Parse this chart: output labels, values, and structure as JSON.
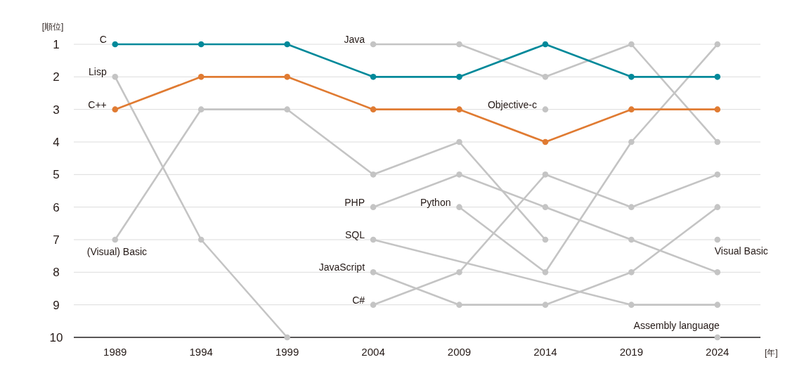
{
  "chart_data": {
    "type": "line",
    "ylabel": "[順位]",
    "xlabel": "[年]",
    "marker": "circle",
    "grid": "y",
    "xlim": [
      1986.6,
      2026.5
    ],
    "ylim": [
      10,
      1
    ],
    "xticks": [
      1989,
      1994,
      1999,
      2004,
      2009,
      2014,
      2019,
      2024
    ],
    "yticks": [
      1,
      2,
      3,
      4,
      5,
      6,
      7,
      8,
      9,
      10
    ],
    "x": [
      1989,
      1994,
      1999,
      2004,
      2009,
      2014,
      2019,
      2024
    ],
    "series": [
      {
        "name": "C",
        "color": "#00899a",
        "values": [
          1,
          1,
          1,
          2,
          2,
          1,
          2,
          2
        ]
      },
      {
        "name": "C++",
        "color": "#e07b32",
        "values": [
          3,
          2,
          2,
          3,
          3,
          4,
          3,
          3
        ]
      },
      {
        "name": "Lisp",
        "color": "#c4c4c4",
        "x": [
          1989,
          1994,
          1999
        ],
        "values": [
          2,
          7,
          10
        ]
      },
      {
        "name": "(Visual) Basic",
        "color": "#c4c4c4",
        "x": [
          1989,
          1994,
          1999,
          2004,
          2009,
          2014
        ],
        "values": [
          7,
          3,
          3,
          5,
          4,
          7
        ]
      },
      {
        "name": "Java",
        "color": "#c4c4c4",
        "x": [
          2004,
          2009,
          2014,
          2019,
          2024
        ],
        "values": [
          1,
          1,
          2,
          1,
          4
        ]
      },
      {
        "name": "Objective-c",
        "color": "#c4c4c4",
        "x": [
          2014
        ],
        "values": [
          3
        ]
      },
      {
        "name": "PHP",
        "color": "#c4c4c4",
        "x": [
          2004,
          2009,
          2014,
          2019,
          2024
        ],
        "values": [
          6,
          5,
          6,
          7,
          8
        ]
      },
      {
        "name": "Python",
        "color": "#c4c4c4",
        "x": [
          2009,
          2014,
          2019,
          2024
        ],
        "values": [
          6,
          8,
          4,
          1
        ]
      },
      {
        "name": "SQL",
        "color": "#c4c4c4",
        "x": [
          2004,
          2019,
          2024
        ],
        "values": [
          7,
          9,
          9
        ]
      },
      {
        "name": "JavaScript",
        "color": "#c4c4c4",
        "x": [
          2004,
          2009,
          2014,
          2019,
          2024
        ],
        "values": [
          8,
          9,
          9,
          8,
          6
        ]
      },
      {
        "name": "C#",
        "color": "#c4c4c4",
        "x": [
          2004,
          2009,
          2014,
          2019,
          2024
        ],
        "values": [
          9,
          8,
          5,
          6,
          5
        ]
      },
      {
        "name": "Visual Basic",
        "color": "#c4c4c4",
        "x": [
          2024
        ],
        "values": [
          7
        ]
      },
      {
        "name": "Assembly language",
        "color": "#c4c4c4",
        "x": [
          2024
        ],
        "values": [
          10
        ]
      }
    ]
  }
}
